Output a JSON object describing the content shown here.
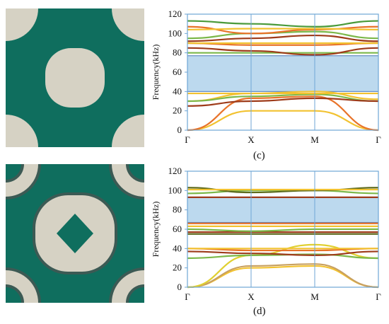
{
  "figure": {
    "unit_cell_colors": {
      "matrix": "#0f6e5e",
      "scatterer": "#d6d2c4",
      "coating": "#3c5a54"
    },
    "panels": [
      {
        "caption": "(c)",
        "ylabel": "Frequency(kHz)",
        "yticks": [
          "0",
          "20",
          "40",
          "60",
          "80",
          "100",
          "120"
        ],
        "xticks": [
          "Γ",
          "X",
          "M",
          "Γ"
        ],
        "chart_data": {
          "type": "line",
          "x": [
            "Γ",
            "X",
            "M",
            "Γ"
          ],
          "ylim": [
            0,
            120
          ],
          "band_gap": [
            40,
            77
          ],
          "series": [
            {
              "color": "#f2c230",
              "values": [
                0,
                20,
                20,
                0
              ]
            },
            {
              "color": "#e8732a",
              "values": [
                0,
                33,
                35,
                0
              ]
            },
            {
              "color": "#f2c230",
              "values": [
                30,
                38,
                40,
                32
              ]
            },
            {
              "color": "#7cb84a",
              "values": [
                30,
                35,
                37,
                30
              ]
            },
            {
              "color": "#9e3b1a",
              "values": [
                25,
                30,
                33,
                30
              ]
            },
            {
              "color": "#f2c230",
              "values": [
                38,
                38,
                38,
                38
              ]
            },
            {
              "color": "#7cb84a",
              "values": [
                80,
                80,
                80,
                80
              ]
            },
            {
              "color": "#9e3b1a",
              "values": [
                85,
                82,
                78,
                85
              ]
            },
            {
              "color": "#e8732a",
              "values": [
                90,
                88,
                88,
                90
              ]
            },
            {
              "color": "#f2c230",
              "values": [
                90,
                90,
                90,
                90
              ]
            },
            {
              "color": "#9e3b1a",
              "values": [
                92,
                95,
                98,
                92
              ]
            },
            {
              "color": "#7cb84a",
              "values": [
                95,
                100,
                102,
                95
              ]
            },
            {
              "color": "#e8732a",
              "values": [
                107,
                100,
                104,
                107
              ]
            },
            {
              "color": "#f2c230",
              "values": [
                104,
                105,
                105,
                104
              ]
            },
            {
              "color": "#4a9a3a",
              "values": [
                113,
                110,
                107,
                113
              ]
            }
          ]
        }
      },
      {
        "caption": "(d)",
        "ylabel": "Frequency(kHz)",
        "yticks": [
          "0",
          "20",
          "40",
          "60",
          "80",
          "100",
          "120"
        ],
        "xticks": [
          "Γ",
          "X",
          "M",
          "Γ"
        ],
        "chart_data": {
          "type": "line",
          "x": [
            "Γ",
            "X",
            "M",
            "Γ"
          ],
          "ylim": [
            0,
            120
          ],
          "band_gap": [
            67,
            93
          ],
          "series": [
            {
              "color": "#f2c230",
              "values": [
                0,
                20,
                22,
                0
              ]
            },
            {
              "color": "#c8a060",
              "values": [
                0,
                22,
                24,
                0
              ]
            },
            {
              "color": "#e0d030",
              "values": [
                0,
                33,
                44,
                30
              ]
            },
            {
              "color": "#7cb84a",
              "values": [
                30,
                33,
                34,
                30
              ]
            },
            {
              "color": "#9e3b1a",
              "values": [
                37,
                35,
                33,
                37
              ]
            },
            {
              "color": "#e8732a",
              "values": [
                40,
                38,
                38,
                40
              ]
            },
            {
              "color": "#f2c230",
              "values": [
                40,
                40,
                40,
                40
              ]
            },
            {
              "color": "#5e6b1e",
              "values": [
                55,
                55,
                55,
                55
              ]
            },
            {
              "color": "#9e3b1a",
              "values": [
                57,
                57,
                57,
                57
              ]
            },
            {
              "color": "#7cb84a",
              "values": [
                60,
                58,
                60,
                60
              ]
            },
            {
              "color": "#f2c230",
              "values": [
                63,
                63,
                63,
                63
              ]
            },
            {
              "color": "#e8732a",
              "values": [
                66,
                66,
                66,
                66
              ]
            },
            {
              "color": "#9e3b1a",
              "values": [
                93,
                93,
                93,
                93
              ]
            },
            {
              "color": "#7cb84a",
              "values": [
                97,
                100,
                100,
                97
              ]
            },
            {
              "color": "#5e6b1e",
              "values": [
                103,
                98,
                100,
                103
              ]
            },
            {
              "color": "#f2c230",
              "values": [
                101,
                101,
                101,
                101
              ]
            }
          ]
        }
      }
    ]
  }
}
